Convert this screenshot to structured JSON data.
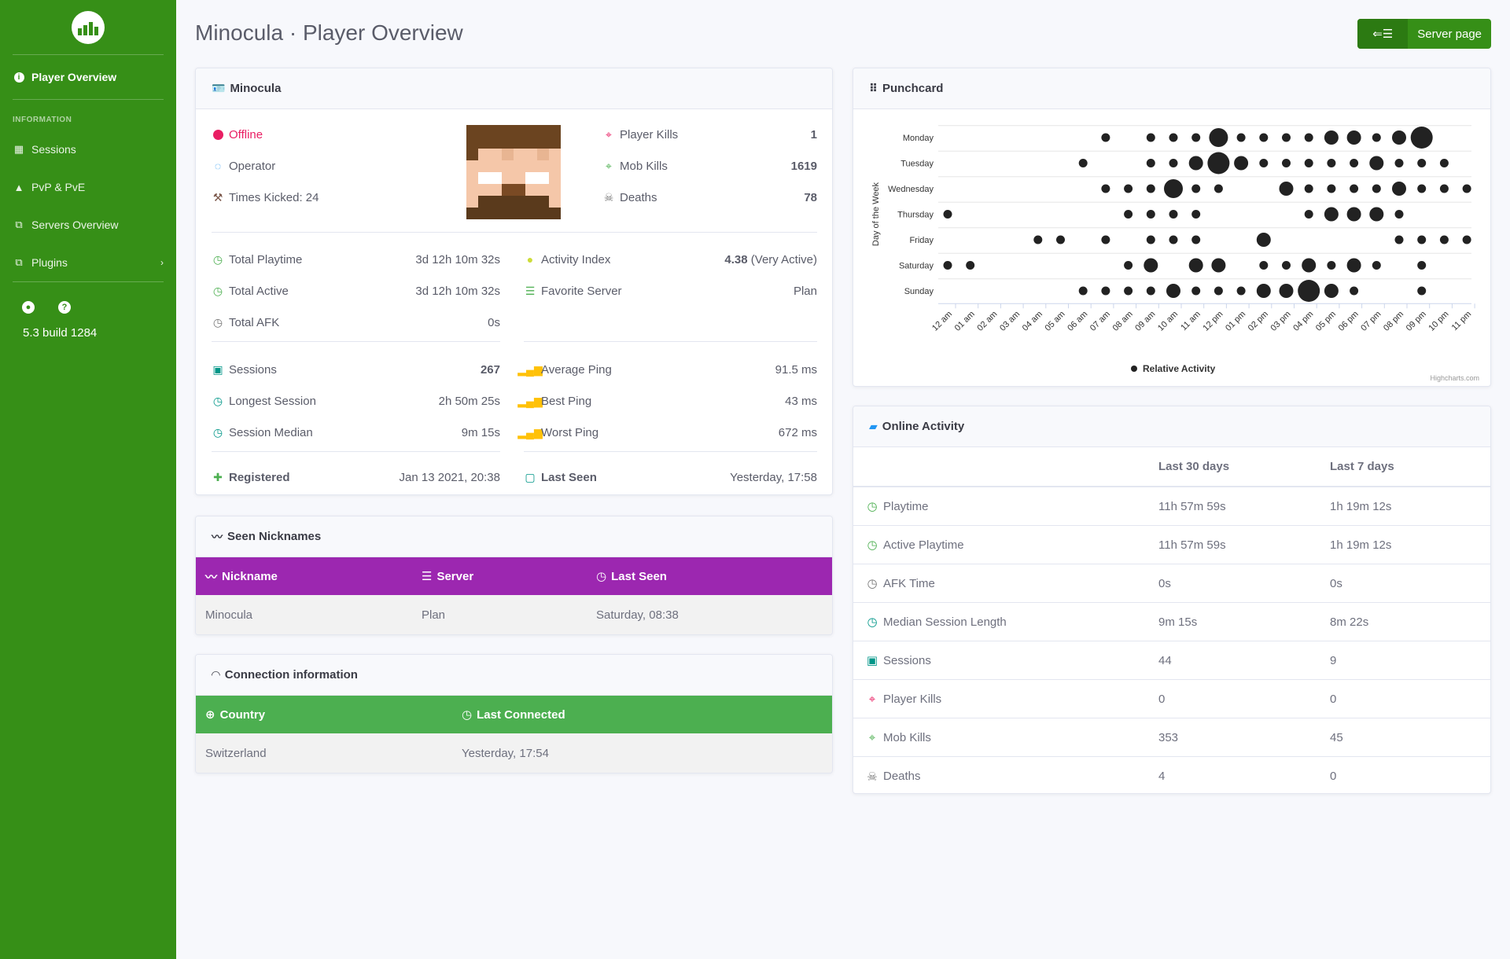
{
  "sidebar": {
    "logo_icon": "bar-chart-icon",
    "active_item": "Player Overview",
    "heading": "INFORMATION",
    "items": [
      "Sessions",
      "PvP & PvE",
      "Servers Overview",
      "Plugins"
    ],
    "version": "5.3 build 1284",
    "accent": "#368f17"
  },
  "header": {
    "title": "Minocula · Player Overview",
    "server_button": "Server page"
  },
  "player": {
    "title": "Minocula",
    "status": "Offline",
    "operator": "Operator",
    "times_kicked": "Times Kicked: 24",
    "player_kills_label": "Player Kills",
    "player_kills": "1",
    "mob_kills_label": "Mob Kills",
    "mob_kills": "1619",
    "deaths_label": "Deaths",
    "deaths": "78",
    "total_playtime_label": "Total Playtime",
    "total_playtime": "3d 12h 10m 32s",
    "total_active_label": "Total Active",
    "total_active": "3d 12h 10m 32s",
    "total_afk_label": "Total AFK",
    "total_afk": "0s",
    "activity_index_label": "Activity Index",
    "activity_index": "4.38",
    "activity_index_note": "(Very Active)",
    "favorite_server_label": "Favorite Server",
    "favorite_server": "Plan",
    "sessions_label": "Sessions",
    "sessions": "267",
    "longest_session_label": "Longest Session",
    "longest_session": "2h 50m 25s",
    "session_median_label": "Session Median",
    "session_median": "9m 15s",
    "average_ping_label": "Average Ping",
    "average_ping": "91.5 ms",
    "best_ping_label": "Best Ping",
    "best_ping": "43 ms",
    "worst_ping_label": "Worst Ping",
    "worst_ping": "672 ms",
    "registered_label": "Registered",
    "registered": "Jan 13 2021, 20:38",
    "last_seen_label": "Last Seen",
    "last_seen": "Yesterday, 17:58"
  },
  "nicknames": {
    "title": "Seen Nicknames",
    "header_color": "#9c27b0",
    "columns": [
      "Nickname",
      "Server",
      "Last Seen"
    ],
    "rows": [
      [
        "Minocula",
        "Plan",
        "Saturday, 08:38"
      ]
    ]
  },
  "connection": {
    "title": "Connection information",
    "header_color": "#4caf50",
    "columns": [
      "Country",
      "Last Connected"
    ],
    "rows": [
      [
        "Switzerland",
        "Yesterday, 17:54"
      ]
    ]
  },
  "punchcard": {
    "title": "Punchcard",
    "credit": "Highcharts.com"
  },
  "chart_data": {
    "type": "scatter",
    "title": "",
    "xlabel": "",
    "ylabel": "Day of the Week",
    "legend": "Relative Activity",
    "legend_position": "bottom",
    "x_categories": [
      "12 am",
      "01 am",
      "02 am",
      "03 am",
      "04 am",
      "05 am",
      "06 am",
      "07 am",
      "08 am",
      "09 am",
      "10 am",
      "11 am",
      "12 pm",
      "01 pm",
      "02 pm",
      "03 pm",
      "04 pm",
      "05 pm",
      "06 pm",
      "07 pm",
      "08 pm",
      "09 pm",
      "10 pm",
      "11 pm"
    ],
    "y_categories": [
      "Monday",
      "Tuesday",
      "Wednesday",
      "Thursday",
      "Friday",
      "Saturday",
      "Sunday"
    ],
    "series": [
      {
        "values": [
          0,
          0,
          0,
          0,
          0,
          0,
          0,
          1,
          0,
          1,
          1,
          1,
          3,
          1,
          1,
          1,
          1,
          2,
          2,
          1,
          2,
          4,
          0,
          0
        ]
      },
      {
        "values": [
          0,
          0,
          0,
          0,
          0,
          0,
          1,
          0,
          0,
          1,
          1,
          2,
          4,
          2,
          1,
          1,
          1,
          1,
          1,
          2,
          1,
          1,
          1,
          0
        ]
      },
      {
        "values": [
          0,
          0,
          0,
          0,
          0,
          0,
          0,
          1,
          1,
          1,
          3,
          1,
          1,
          0,
          0,
          2,
          1,
          1,
          1,
          1,
          2,
          1,
          1,
          1
        ]
      },
      {
        "values": [
          1,
          0,
          0,
          0,
          0,
          0,
          0,
          0,
          1,
          1,
          1,
          1,
          0,
          0,
          0,
          0,
          1,
          2,
          2,
          2,
          1,
          0,
          0,
          0
        ]
      },
      {
        "values": [
          0,
          0,
          0,
          0,
          1,
          1,
          0,
          1,
          0,
          1,
          1,
          1,
          0,
          0,
          2,
          0,
          0,
          0,
          0,
          0,
          1,
          1,
          1,
          1
        ]
      },
      {
        "values": [
          1,
          1,
          0,
          0,
          0,
          0,
          0,
          0,
          1,
          2,
          0,
          2,
          2,
          0,
          1,
          1,
          2,
          1,
          2,
          1,
          0,
          1,
          0,
          0
        ]
      },
      {
        "values": [
          0,
          0,
          0,
          0,
          0,
          0,
          1,
          1,
          1,
          1,
          2,
          1,
          1,
          1,
          2,
          2,
          4,
          2,
          1,
          0,
          0,
          1,
          0,
          0
        ]
      }
    ]
  },
  "online": {
    "title": "Online Activity",
    "columns": [
      "",
      "Last 30 days",
      "Last 7 days"
    ],
    "rows": [
      {
        "icon": "clock-icon",
        "label": "Playtime",
        "d30": "11h 57m 59s",
        "d7": "1h 19m 12s"
      },
      {
        "icon": "clock-icon",
        "label": "Active Playtime",
        "d30": "11h 57m 59s",
        "d7": "1h 19m 12s"
      },
      {
        "icon": "clock-icon",
        "label": "AFK Time",
        "d30": "0s",
        "d7": "0s"
      },
      {
        "icon": "clock-icon",
        "label": "Median Session Length",
        "d30": "9m 15s",
        "d7": "8m 22s"
      },
      {
        "icon": "calendar-icon",
        "label": "Sessions",
        "d30": "44",
        "d7": "9"
      },
      {
        "icon": "crosshairs-icon",
        "label": "Player Kills",
        "d30": "0",
        "d7": "0"
      },
      {
        "icon": "crosshairs-icon",
        "label": "Mob Kills",
        "d30": "353",
        "d7": "45"
      },
      {
        "icon": "skull-icon",
        "label": "Deaths",
        "d30": "4",
        "d7": "0"
      }
    ]
  }
}
